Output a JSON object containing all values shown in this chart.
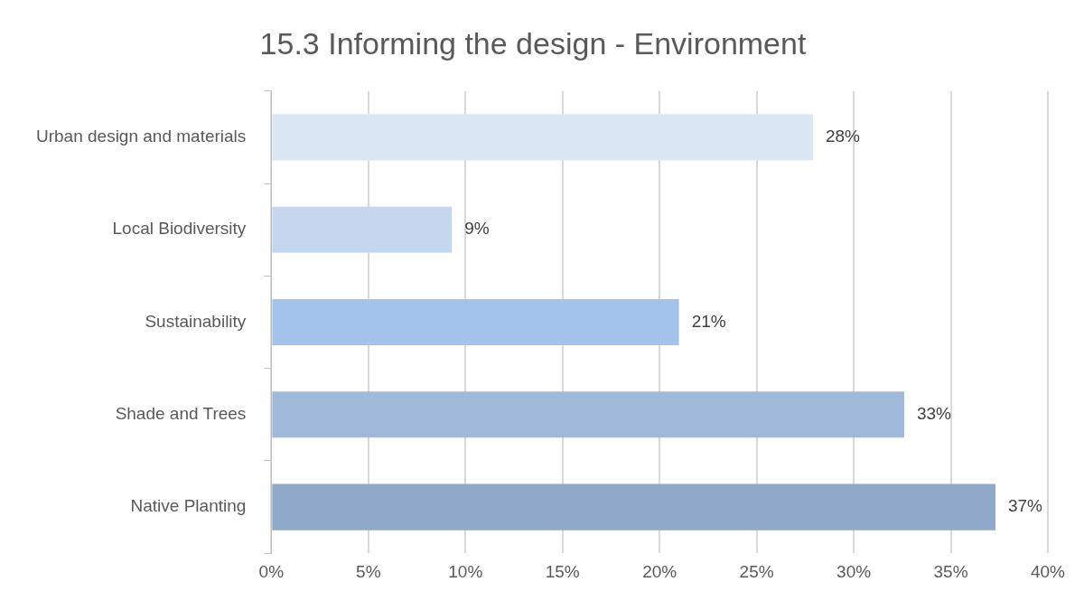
{
  "chart_data": {
    "type": "bar",
    "orientation": "horizontal",
    "title": "15.3 Informing the design - Environment",
    "categories": [
      "Urban design and materials",
      "Local Biodiversity",
      "Sustainability",
      "Shade and Trees",
      "Native Planting"
    ],
    "values": [
      27.9,
      9.3,
      21,
      32.6,
      37.3
    ],
    "value_labels": [
      "28%",
      "9%",
      "21%",
      "33%",
      "37%"
    ],
    "colors": [
      "#dce7f5",
      "#c4d7ef",
      "#a3c3ea",
      "#a0b8d9",
      "#90a8c9"
    ],
    "xlim": [
      0,
      40
    ],
    "xticks": [
      {
        "value": 0,
        "label": "0%"
      },
      {
        "value": 5,
        "label": "5%"
      },
      {
        "value": 10,
        "label": "10%"
      },
      {
        "value": 15,
        "label": "15%"
      },
      {
        "value": 20,
        "label": "20%"
      },
      {
        "value": 25,
        "label": "25%"
      },
      {
        "value": 30,
        "label": "30%"
      },
      {
        "value": 35,
        "label": "35%"
      },
      {
        "value": 40,
        "label": "40%"
      }
    ],
    "grid": "x",
    "legend": false
  }
}
